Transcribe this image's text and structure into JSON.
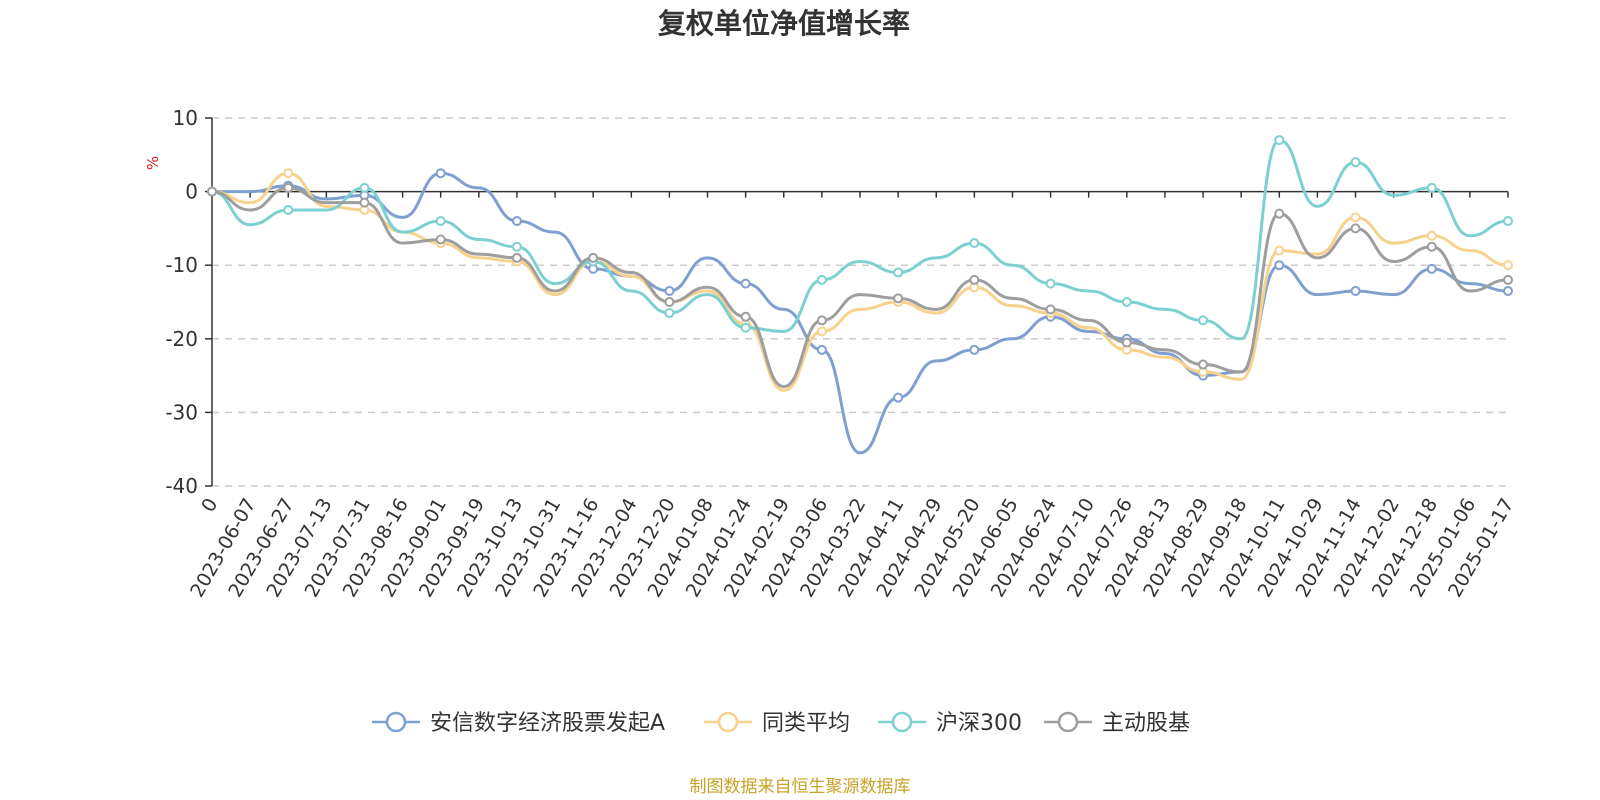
{
  "chart_data": {
    "type": "line",
    "title": "复权单位净值增长率",
    "ylabel": "%",
    "ylim": [
      -40,
      10
    ],
    "yticks": [
      10,
      0,
      -10,
      -20,
      -30,
      -40
    ],
    "grid": true,
    "legend_position": "bottom",
    "x_tick_labels": [
      "0",
      "2023-06-07",
      "2023-06-27",
      "2023-07-13",
      "2023-07-31",
      "2023-08-16",
      "2023-09-01",
      "2023-09-19",
      "2023-10-13",
      "2023-10-31",
      "2023-11-16",
      "2023-12-04",
      "2023-12-20",
      "2024-01-08",
      "2024-01-24",
      "2024-02-19",
      "2024-03-06",
      "2024-03-22",
      "2024-04-11",
      "2024-04-29",
      "2024-05-20",
      "2024-06-05",
      "2024-06-24",
      "2024-07-10",
      "2024-07-26",
      "2024-08-13",
      "2024-08-29",
      "2024-09-18",
      "2024-10-11",
      "2024-10-29",
      "2024-11-14",
      "2024-12-02",
      "2024-12-18",
      "2025-01-06",
      "2025-01-17"
    ],
    "series": [
      {
        "name": "安信数字经济股票发起A",
        "color": "#7f9fd0",
        "values": [
          0,
          0,
          0.8,
          -1.0,
          -0.5,
          -3.5,
          2.5,
          0.5,
          -4.0,
          -5.5,
          -10.5,
          -11.5,
          -13.5,
          -9.0,
          -12.5,
          -16.0,
          -21.5,
          -35.5,
          -28.0,
          -23.0,
          -21.5,
          -20.0,
          -17.0,
          -19.0,
          -20.0,
          -22.0,
          -25.0,
          -24.5,
          -10.0,
          -14.0,
          -13.5,
          -14.0,
          -10.5,
          -12.5,
          -13.5
        ]
      },
      {
        "name": "同类平均",
        "color": "#f6d28c",
        "values": [
          0,
          -1.5,
          2.5,
          -2.0,
          -2.5,
          -5.5,
          -7.0,
          -9.0,
          -9.5,
          -14.0,
          -9.5,
          -11.5,
          -15.0,
          -13.5,
          -18.0,
          -27.0,
          -19.0,
          -16.0,
          -15.0,
          -16.5,
          -13.0,
          -15.5,
          -16.5,
          -18.5,
          -21.5,
          -22.5,
          -24.5,
          -25.5,
          -8.0,
          -8.5,
          -3.5,
          -7.0,
          -6.0,
          -8.0,
          -10.0
        ]
      },
      {
        "name": "沪深300",
        "color": "#7dd0d0",
        "values": [
          0,
          -4.5,
          -2.5,
          -2.5,
          0.5,
          -5.5,
          -4.0,
          -6.5,
          -7.5,
          -12.5,
          -9.5,
          -13.5,
          -16.5,
          -14.0,
          -18.5,
          -19.0,
          -12.0,
          -9.5,
          -11.0,
          -9.0,
          -7.0,
          -10.0,
          -12.5,
          -13.5,
          -15.0,
          -16.0,
          -17.5,
          -20.0,
          7.0,
          -2.0,
          4.0,
          -0.5,
          0.5,
          -6.0,
          -4.0
        ]
      },
      {
        "name": "主动股基",
        "color": "#9e9e9e",
        "values": [
          0,
          -2.5,
          0.5,
          -1.5,
          -1.5,
          -7.0,
          -6.5,
          -8.5,
          -9.0,
          -13.5,
          -9.0,
          -11.0,
          -15.0,
          -13.0,
          -17.0,
          -26.5,
          -17.5,
          -14.0,
          -14.5,
          -16.0,
          -12.0,
          -14.5,
          -16.0,
          -17.5,
          -20.5,
          -21.5,
          -23.5,
          -24.5,
          -3.0,
          -9.0,
          -5.0,
          -9.5,
          -7.5,
          -13.5,
          -12.0
        ]
      }
    ],
    "source": "制图数据来自恒生聚源数据库"
  }
}
